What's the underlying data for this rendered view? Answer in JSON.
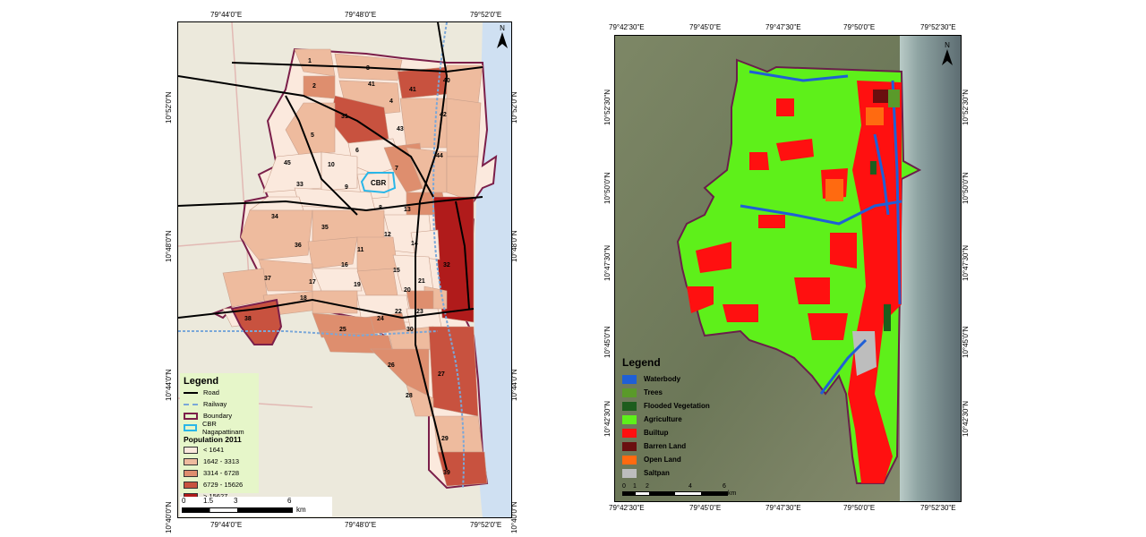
{
  "left_map": {
    "top_ticks": [
      "79°44'0\"E",
      "79°48'0\"E",
      "79°52'0\"E"
    ],
    "bottom_ticks": [
      "79°44'0\"E",
      "79°48'0\"E",
      "79°52'0\"E"
    ],
    "left_ticks": [
      "10°52'0\"N",
      "10°48'0\"N",
      "10°44'0\"N",
      "10°40'0\"N"
    ],
    "right_ticks": [
      "10°52'0\"N",
      "10°48'0\"N",
      "10°44'0\"N",
      "10°40'0\"N"
    ],
    "north": "N",
    "legend": {
      "title": "Legend",
      "items": [
        {
          "label": "Road",
          "color": "#000000",
          "kind": "line"
        },
        {
          "label": "Railway",
          "color": "#7aa7d8",
          "kind": "rail"
        },
        {
          "label": "Boundary",
          "color": "#7b1f4a",
          "kind": "box"
        },
        {
          "label": "CBR Nagapattinam",
          "color": "#29b6e8",
          "kind": "box"
        }
      ],
      "pop_title": "Population 2011",
      "pop_items": [
        {
          "label": "< 1641",
          "color": "#fbe9dd"
        },
        {
          "label": "1642 - 3313",
          "color": "#eebb9e"
        },
        {
          "label": "3314 - 6728",
          "color": "#de8e6e"
        },
        {
          "label": "6729 - 15626",
          "color": "#c8523f"
        },
        {
          "label": "> 15627",
          "color": "#b01b1b"
        }
      ]
    },
    "scale_labels": [
      "0",
      "1.5",
      "3",
      "6"
    ],
    "scale_unit": "km",
    "cbr_label": "CBR",
    "ward_labels": [
      "1",
      "2",
      "3",
      "4",
      "5",
      "6",
      "7",
      "8",
      "9",
      "10",
      "11",
      "12",
      "13",
      "14",
      "15",
      "16",
      "17",
      "18",
      "19",
      "20",
      "21",
      "22",
      "23",
      "24",
      "25",
      "26",
      "27",
      "28",
      "29",
      "30",
      "31",
      "32",
      "33",
      "34",
      "35",
      "36",
      "37",
      "38",
      "39",
      "40",
      "41",
      "41",
      "42",
      "43",
      "44",
      "45"
    ]
  },
  "right_map": {
    "top_ticks": [
      "79°42'30\"E",
      "79°45'0\"E",
      "79°47'30\"E",
      "79°50'0\"E",
      "79°52'30\"E"
    ],
    "bottom_ticks": [
      "79°42'30\"E",
      "79°45'0\"E",
      "79°47'30\"E",
      "79°50'0\"E",
      "79°52'30\"E"
    ],
    "left_ticks": [
      "10°52'30\"N",
      "10°50'0\"N",
      "10°47'30\"N",
      "10°45'0\"N",
      "10°42'30\"N"
    ],
    "right_ticks": [
      "10°52'30\"N",
      "10°50'0\"N",
      "10°47'30\"N",
      "10°45'0\"N",
      "10°42'30\"N"
    ],
    "north": "N",
    "legend": {
      "title": "Legend",
      "items": [
        {
          "label": "Waterbody",
          "color": "#1f5fd6"
        },
        {
          "label": "Trees",
          "color": "#5a9a2a"
        },
        {
          "label": "Flooded Vegetation",
          "color": "#1d5d1d"
        },
        {
          "label": "Agriculture",
          "color": "#5ef01a"
        },
        {
          "label": "Builtup",
          "color": "#ff1010"
        },
        {
          "label": "Barren Land",
          "color": "#6a0f0f"
        },
        {
          "label": "Open Land",
          "color": "#ff6a10"
        },
        {
          "label": "Saltpan",
          "color": "#bdbdbd"
        }
      ]
    },
    "scale_labels": [
      "0",
      "1",
      "2",
      "4",
      "6"
    ],
    "scale_unit": "km"
  }
}
